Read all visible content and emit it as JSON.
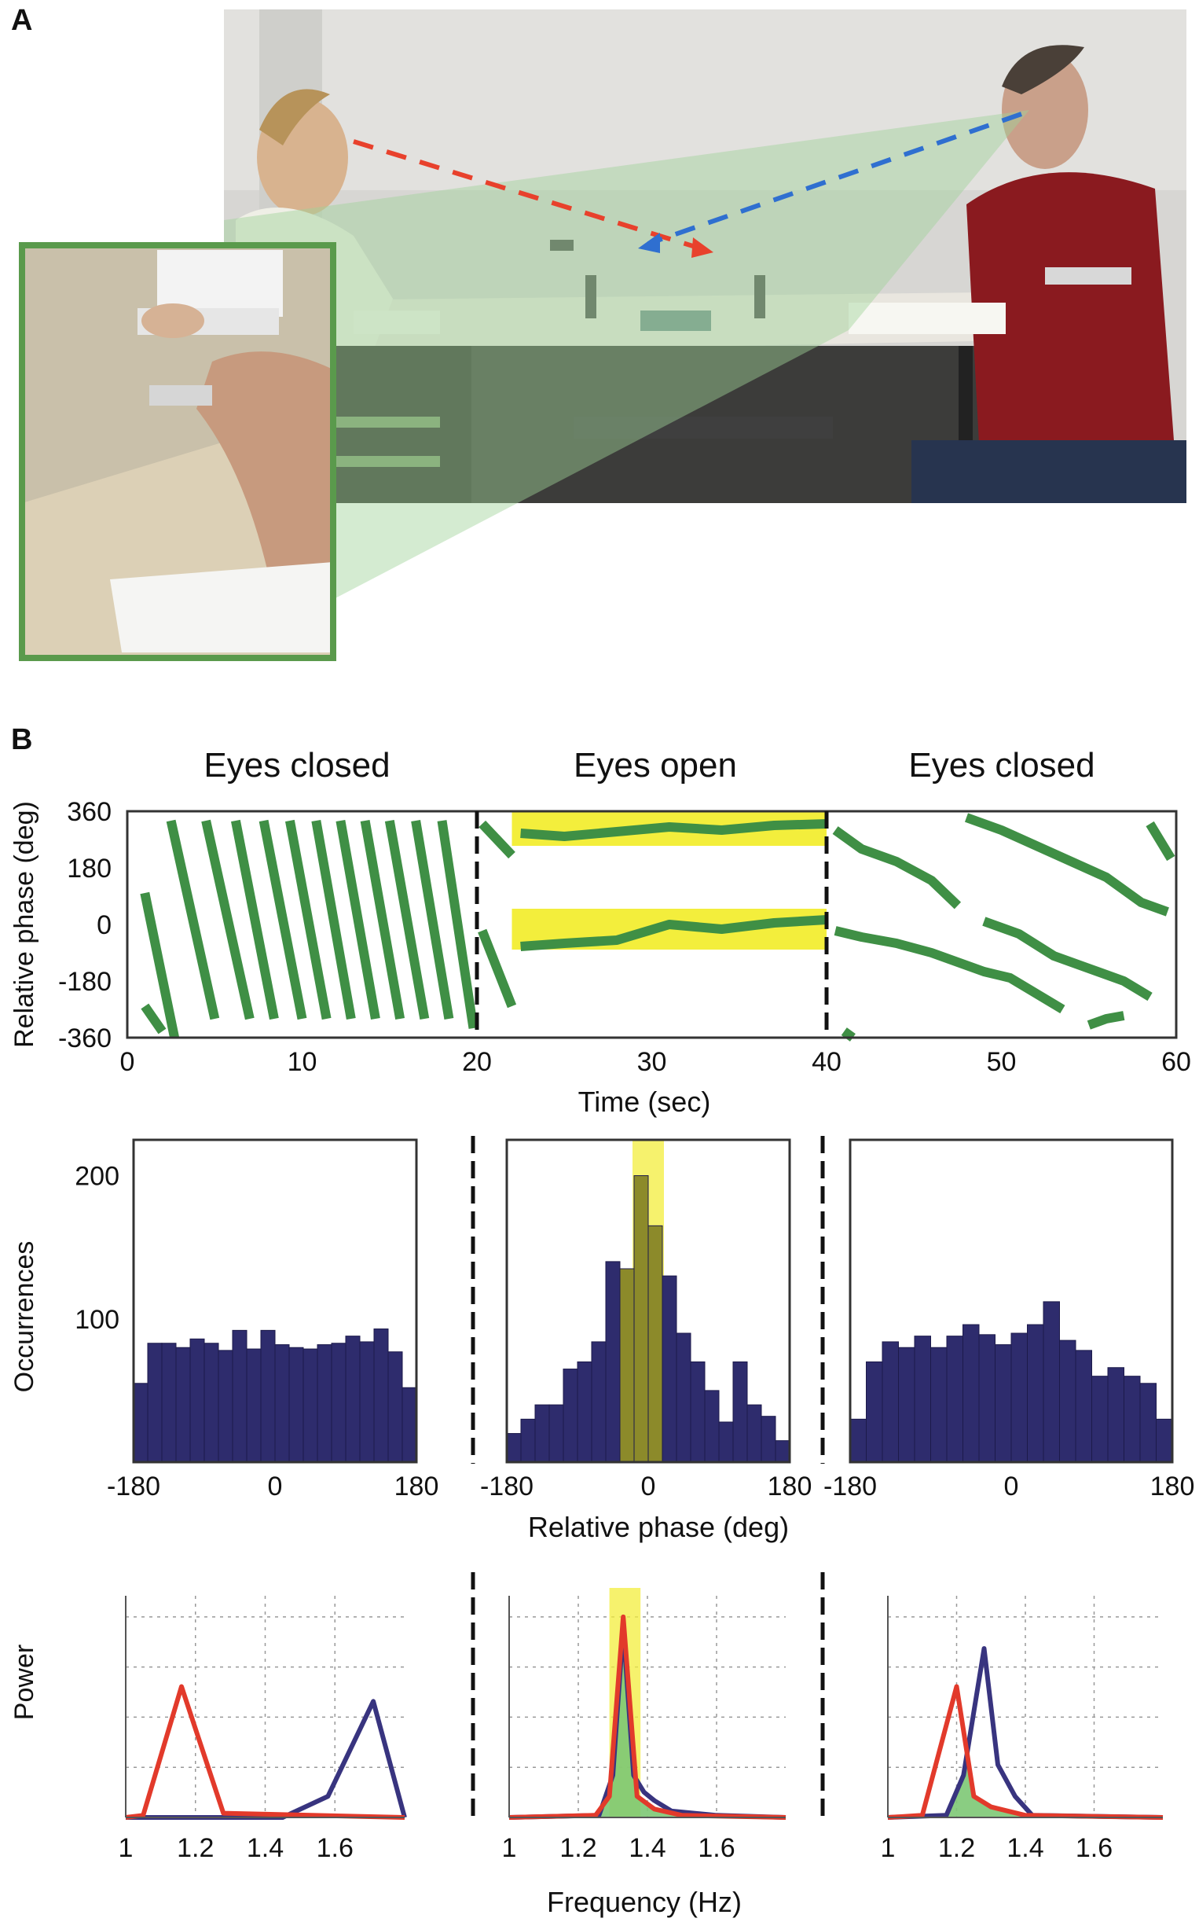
{
  "panel_letters": {
    "a": "A",
    "b": "B"
  },
  "colors": {
    "green_trace": "#3f8f45",
    "yellow_band": "#f3ee3c",
    "bar_fill": "#2e2c6d",
    "olive_bar": "#8c8a2a",
    "red_line": "#e23a2b",
    "blue_line": "#38347f",
    "green_fill": "#7dc874",
    "gaze_red": "#e8412c",
    "gaze_blue": "#2f6fd0"
  },
  "chart_data": [
    {
      "type": "line",
      "condition_labels": [
        "Eyes closed",
        "Eyes open",
        "Eyes closed"
      ],
      "xlabel": "Time (sec)",
      "ylabel": "Relative phase (deg)",
      "xlim": [
        0,
        60
      ],
      "ylim": [
        -360,
        360
      ],
      "xticks": [
        "0",
        "10",
        "20",
        "30",
        "40",
        "50",
        "60"
      ],
      "yticks": [
        "360",
        "180",
        "0",
        "-180",
        "-360"
      ],
      "condition_boundaries": [
        20,
        40
      ],
      "highlight_bands": [
        {
          "x": [
            22,
            40
          ],
          "y": [
            -80,
            50
          ]
        },
        {
          "x": [
            22,
            40
          ],
          "y": [
            250,
            370
          ]
        }
      ],
      "segments": [
        {
          "points": [
            [
              1,
              -260
            ],
            [
              2,
              -340
            ]
          ]
        },
        {
          "points": [
            [
              1,
              100
            ],
            [
              2.7,
              -360
            ]
          ]
        },
        {
          "points": [
            [
              2.5,
              330
            ],
            [
              5,
              -300
            ]
          ]
        },
        {
          "points": [
            [
              4.5,
              330
            ],
            [
              7,
              -300
            ]
          ]
        },
        {
          "points": [
            [
              6.2,
              330
            ],
            [
              8.4,
              -300
            ]
          ]
        },
        {
          "points": [
            [
              7.8,
              330
            ],
            [
              10,
              -300
            ]
          ]
        },
        {
          "points": [
            [
              9.3,
              330
            ],
            [
              11.4,
              -300
            ]
          ]
        },
        {
          "points": [
            [
              10.8,
              330
            ],
            [
              12.8,
              -300
            ]
          ]
        },
        {
          "points": [
            [
              12.2,
              330
            ],
            [
              14.2,
              -300
            ]
          ]
        },
        {
          "points": [
            [
              13.6,
              330
            ],
            [
              15.6,
              -300
            ]
          ]
        },
        {
          "points": [
            [
              15,
              330
            ],
            [
              17,
              -300
            ]
          ]
        },
        {
          "points": [
            [
              16.5,
              330
            ],
            [
              18.4,
              -300
            ]
          ]
        },
        {
          "points": [
            [
              18,
              330
            ],
            [
              19.8,
              -330
            ]
          ]
        },
        {
          "points": [
            [
              20.3,
              320
            ],
            [
              22,
              220
            ]
          ]
        },
        {
          "points": [
            [
              20.3,
              -20
            ],
            [
              22,
              -260
            ]
          ]
        },
        {
          "points": [
            [
              22.5,
              290
            ],
            [
              25,
              280
            ],
            [
              28,
              295
            ],
            [
              31,
              310
            ],
            [
              34,
              300
            ],
            [
              37,
              315
            ],
            [
              40,
              320
            ]
          ]
        },
        {
          "points": [
            [
              22.5,
              -70
            ],
            [
              25,
              -60
            ],
            [
              28,
              -50
            ],
            [
              31,
              0
            ],
            [
              34,
              -15
            ],
            [
              37,
              5
            ],
            [
              40,
              15
            ]
          ]
        },
        {
          "points": [
            [
              40.5,
              300
            ],
            [
              42,
              240
            ],
            [
              44,
              200
            ],
            [
              46,
              140
            ],
            [
              47.5,
              60
            ]
          ]
        },
        {
          "points": [
            [
              40.5,
              -20
            ],
            [
              42,
              -40
            ],
            [
              44,
              -60
            ],
            [
              46,
              -90
            ],
            [
              47.5,
              -120
            ],
            [
              49,
              -150
            ],
            [
              50.5,
              -170
            ],
            [
              52,
              -220
            ],
            [
              53.5,
              -270
            ]
          ]
        },
        {
          "points": [
            [
              48,
              340
            ],
            [
              50,
              300
            ],
            [
              52,
              250
            ],
            [
              54,
              200
            ],
            [
              56,
              150
            ],
            [
              58,
              70
            ],
            [
              59.5,
              40
            ]
          ]
        },
        {
          "points": [
            [
              49,
              10
            ],
            [
              51,
              -30
            ],
            [
              53,
              -100
            ],
            [
              55,
              -140
            ],
            [
              57,
              -180
            ],
            [
              58.5,
              -230
            ]
          ]
        },
        {
          "points": [
            [
              41,
              -340
            ],
            [
              41.5,
              -360
            ]
          ]
        },
        {
          "points": [
            [
              57,
              -290
            ],
            [
              56,
              -300
            ],
            [
              55,
              -320
            ]
          ]
        },
        {
          "points": [
            [
              58.5,
              320
            ],
            [
              59.7,
              210
            ]
          ]
        }
      ]
    },
    {
      "type": "bar",
      "title": "",
      "xlabel": "",
      "ylabel": "Occurrences",
      "xlim": [
        -180,
        180
      ],
      "ylim": [
        0,
        225
      ],
      "xticks": [
        "-180",
        "0",
        "180"
      ],
      "yticks": [
        "200",
        "100"
      ],
      "values": [
        55,
        83,
        83,
        80,
        86,
        83,
        78,
        92,
        79,
        92,
        82,
        80,
        79,
        82,
        83,
        88,
        84,
        93,
        77,
        52
      ]
    },
    {
      "type": "bar",
      "title": "",
      "xlabel": "",
      "ylabel": "",
      "xlim": [
        -180,
        180
      ],
      "ylim": [
        0,
        225
      ],
      "xticks": [
        "-180",
        "0",
        "180"
      ],
      "yticks": [],
      "highlight_band": [
        -20,
        20
      ],
      "highlight_bars": [
        8,
        9,
        10
      ],
      "values": [
        20,
        30,
        40,
        40,
        65,
        70,
        84,
        140,
        135,
        200,
        165,
        130,
        90,
        70,
        50,
        28,
        70,
        40,
        32,
        15
      ]
    },
    {
      "type": "bar",
      "title": "",
      "xlabel": "",
      "ylabel": "",
      "xlim": [
        -180,
        180
      ],
      "ylim": [
        0,
        225
      ],
      "xticks": [
        "-180",
        "0",
        "180"
      ],
      "yticks": [],
      "values": [
        30,
        70,
        84,
        80,
        88,
        80,
        88,
        96,
        89,
        82,
        90,
        96,
        112,
        85,
        78,
        60,
        66,
        60,
        55,
        30
      ]
    },
    {
      "type": "line",
      "xlabel": "",
      "ylabel": "Power",
      "xlim": [
        1,
        1.8
      ],
      "ylim": [
        0,
        1.05
      ],
      "xticks": [
        "1",
        "1.2",
        "1.4",
        "1.6"
      ],
      "series": [
        {
          "color": "red",
          "points": [
            [
              1,
              0
            ],
            [
              1.05,
              0.01
            ],
            [
              1.16,
              0.62
            ],
            [
              1.28,
              0.02
            ],
            [
              1.8,
              0
            ]
          ]
        },
        {
          "color": "blue",
          "points": [
            [
              1,
              0
            ],
            [
              1.45,
              0
            ],
            [
              1.58,
              0.1
            ],
            [
              1.71,
              0.55
            ],
            [
              1.8,
              0
            ]
          ]
        }
      ]
    },
    {
      "type": "area",
      "xlabel": "Frequency (Hz)",
      "ylabel": "",
      "xlim": [
        1,
        1.8
      ],
      "ylim": [
        0,
        1.05
      ],
      "xticks": [
        "1",
        "1.2",
        "1.4",
        "1.6"
      ],
      "highlight_band": [
        1.29,
        1.38
      ],
      "series": [
        {
          "color": "red",
          "points": [
            [
              1,
              0
            ],
            [
              1.25,
              0.01
            ],
            [
              1.29,
              0.1
            ],
            [
              1.33,
              0.95
            ],
            [
              1.37,
              0.1
            ],
            [
              1.42,
              0.04
            ],
            [
              1.5,
              0.01
            ],
            [
              1.8,
              0
            ]
          ]
        },
        {
          "color": "blue",
          "points": [
            [
              1,
              0
            ],
            [
              1.26,
              0.01
            ],
            [
              1.3,
              0.2
            ],
            [
              1.33,
              0.9
            ],
            [
              1.36,
              0.2
            ],
            [
              1.39,
              0.12
            ],
            [
              1.42,
              0.08
            ],
            [
              1.47,
              0.03
            ],
            [
              1.6,
              0.01
            ],
            [
              1.8,
              0
            ]
          ]
        }
      ]
    },
    {
      "type": "area",
      "xlabel": "",
      "ylabel": "",
      "xlim": [
        1,
        1.8
      ],
      "ylim": [
        0,
        1.05
      ],
      "xticks": [
        "1",
        "1.2",
        "1.4",
        "1.6"
      ],
      "series": [
        {
          "color": "red",
          "points": [
            [
              1,
              0
            ],
            [
              1.1,
              0.01
            ],
            [
              1.2,
              0.62
            ],
            [
              1.25,
              0.1
            ],
            [
              1.3,
              0.05
            ],
            [
              1.4,
              0.01
            ],
            [
              1.8,
              0
            ]
          ]
        },
        {
          "color": "blue",
          "points": [
            [
              1,
              0
            ],
            [
              1.17,
              0.01
            ],
            [
              1.22,
              0.2
            ],
            [
              1.28,
              0.8
            ],
            [
              1.32,
              0.25
            ],
            [
              1.37,
              0.1
            ],
            [
              1.42,
              0.01
            ],
            [
              1.8,
              0
            ]
          ]
        }
      ]
    }
  ]
}
